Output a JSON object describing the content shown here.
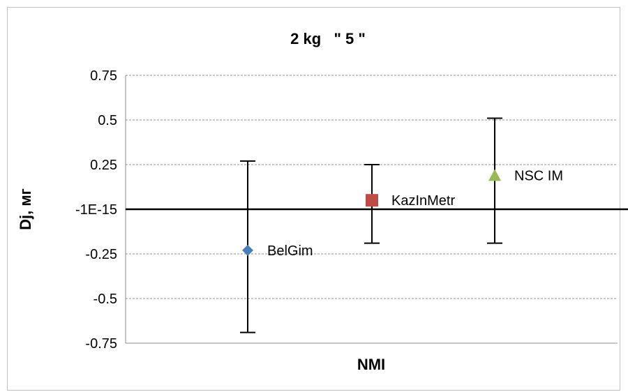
{
  "chart_data": {
    "type": "scatter",
    "title": "2 kg   \" 5 \"",
    "xlabel": "NMI",
    "ylabel": "Dj, мг",
    "ylim": [
      -0.75,
      0.75
    ],
    "y_ticks": [
      {
        "value": 0.75,
        "label": "0.75"
      },
      {
        "value": 0.5,
        "label": "0.5"
      },
      {
        "value": 0.25,
        "label": "0.25"
      },
      {
        "value": 0,
        "label": "-1E-15"
      },
      {
        "value": -0.25,
        "label": "-0.25"
      },
      {
        "value": -0.5,
        "label": "-0.5"
      },
      {
        "value": -0.75,
        "label": "-0.75"
      }
    ],
    "grid": true,
    "reference_line": 0,
    "points": [
      {
        "name": "BelGim",
        "x": 1,
        "y": -0.23,
        "err_low": -0.69,
        "err_high": 0.27,
        "marker": "diamond",
        "color": "#4a7ebb"
      },
      {
        "name": "KazInMetr",
        "x": 2,
        "y": 0.05,
        "err_low": -0.19,
        "err_high": 0.25,
        "marker": "square",
        "color": "#be4b48"
      },
      {
        "name": "NSC IM",
        "x": 3,
        "y": 0.19,
        "err_low": -0.19,
        "err_high": 0.51,
        "marker": "triangle",
        "color": "#98b954"
      }
    ]
  }
}
